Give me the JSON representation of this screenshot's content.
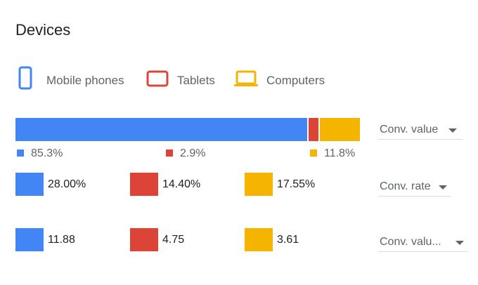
{
  "title": "Devices",
  "legend": [
    {
      "label": "Mobile phones",
      "icon": "mobile-phone-icon",
      "color": "#4285f4"
    },
    {
      "label": "Tablets",
      "icon": "tablet-icon",
      "color": "#db4437"
    },
    {
      "label": "Computers",
      "icon": "laptop-icon",
      "color": "#f4b400"
    }
  ],
  "distribution": {
    "metric_label": "Conv. value",
    "shares": [
      85.3,
      2.9,
      11.8
    ],
    "labels": [
      "85.3%",
      "2.9%",
      "11.8%"
    ]
  },
  "rows": [
    {
      "metric_label": "Conv. rate",
      "values": [
        "28.00%",
        "14.40%",
        "17.55%"
      ]
    },
    {
      "metric_label": "Conv. valu...",
      "values": [
        "11.88",
        "4.75",
        "3.61"
      ]
    }
  ]
}
